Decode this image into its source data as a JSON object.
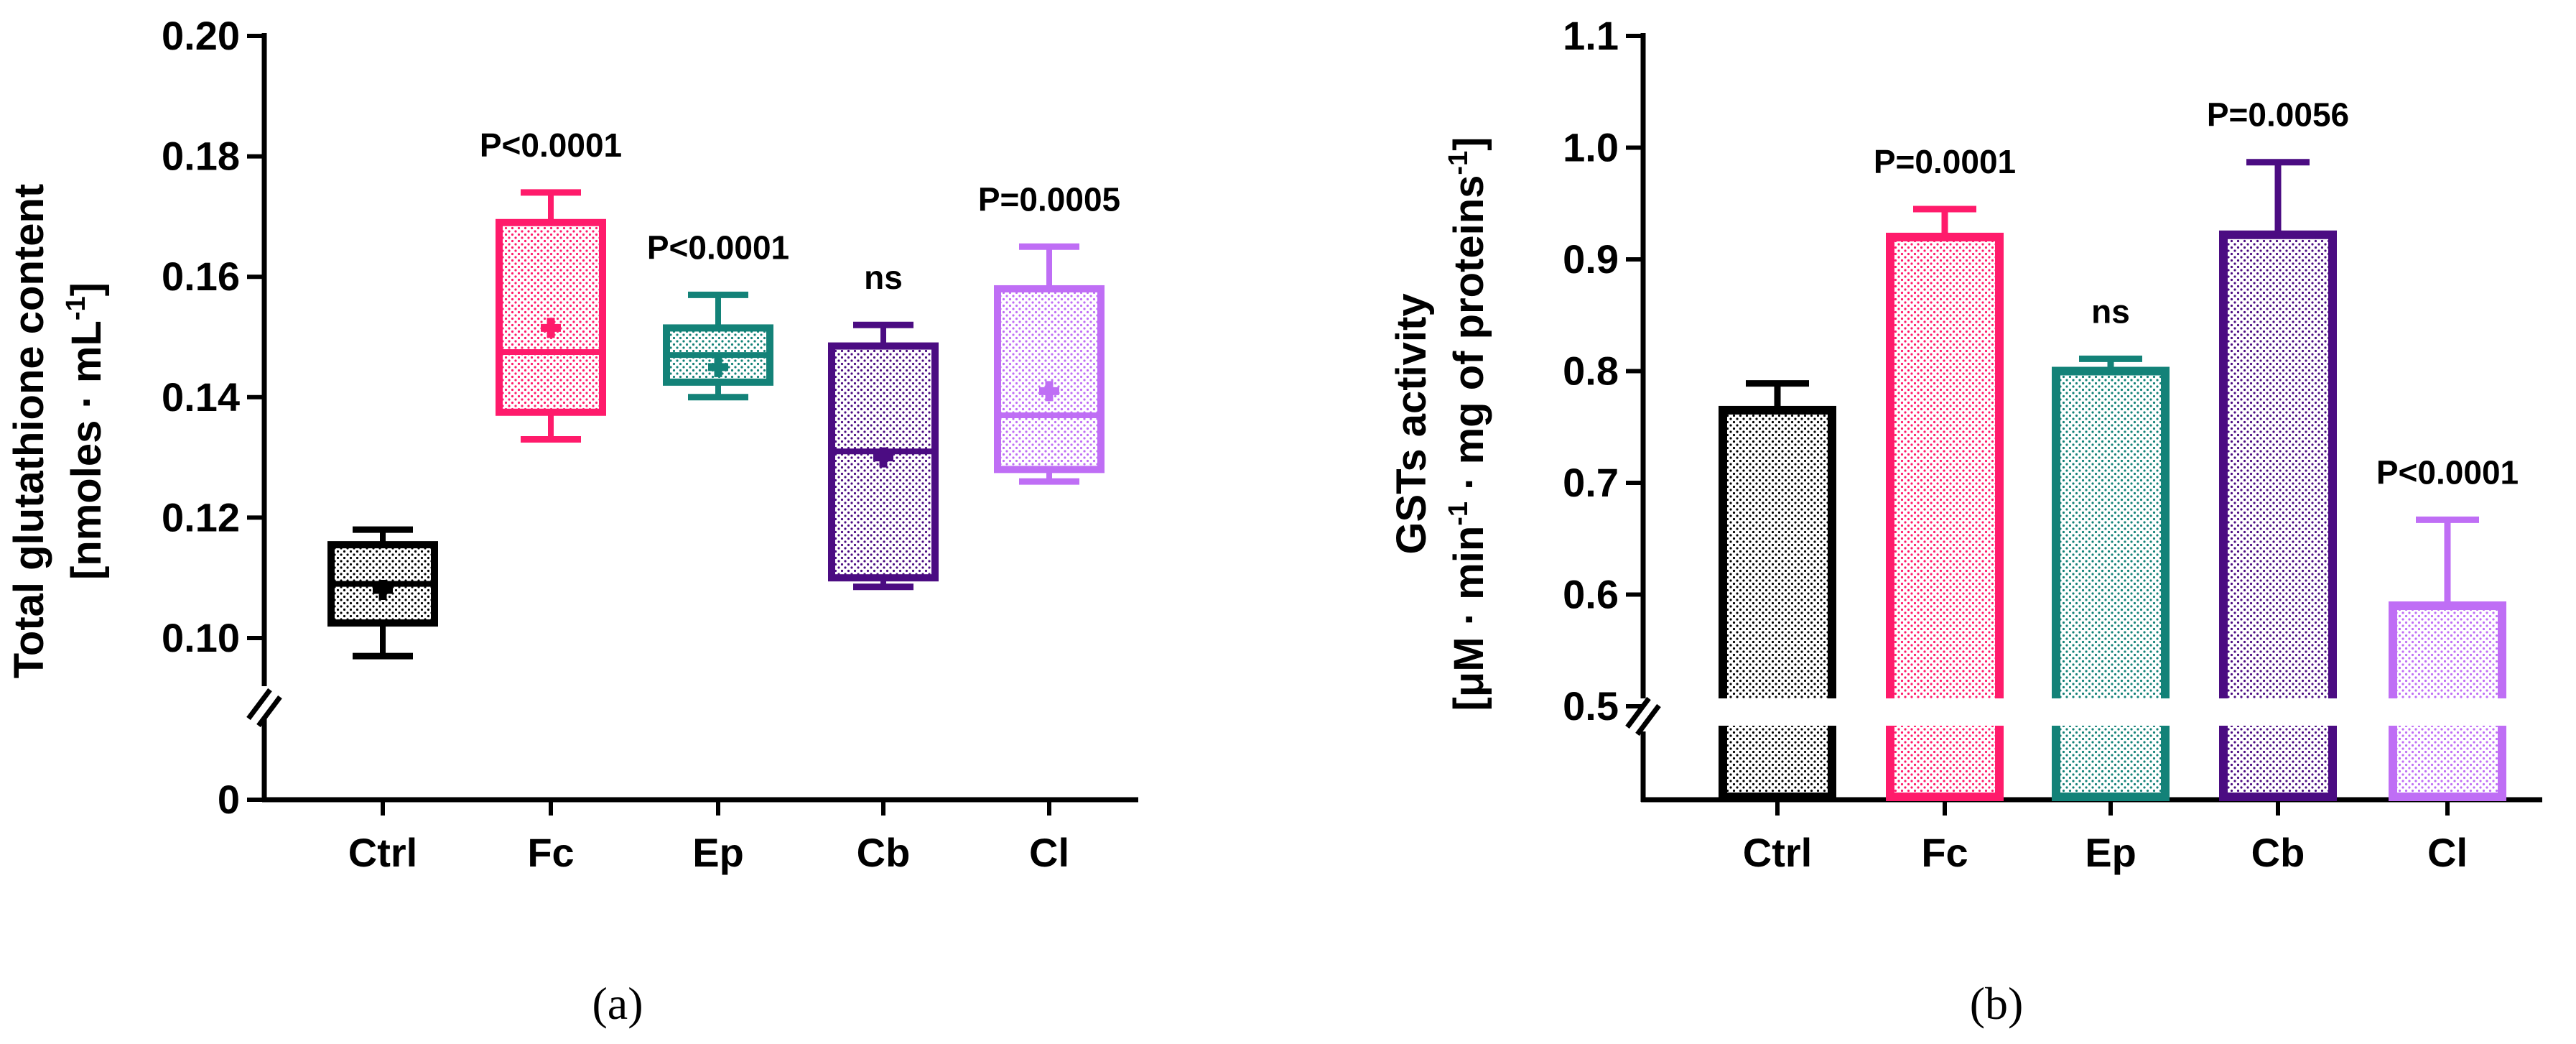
{
  "chart_data": [
    {
      "type": "box",
      "panel_label": "(a)",
      "ylabel_line1": "Total glutathione content",
      "ylabel_line2": "[nmoles · mL",
      "ylabel_sup": "-1",
      "ylabel_close": "]",
      "xlabel": "",
      "categories": [
        "Ctrl",
        "Fc",
        "Ep",
        "Cb",
        "Cl"
      ],
      "y_ticks": [
        "0.20",
        "0.18",
        "0.16",
        "0.14",
        "0.12",
        "0.10",
        "0"
      ],
      "ylim": [
        0.1,
        0.2
      ],
      "axis_break": true,
      "series": [
        {
          "category": "Ctrl",
          "min": 0.097,
          "q1": 0.1025,
          "median": 0.109,
          "q3": 0.1155,
          "max": 0.118,
          "mean": 0.108,
          "color": "#000000",
          "annotation": ""
        },
        {
          "category": "Fc",
          "min": 0.133,
          "q1": 0.1375,
          "median": 0.1475,
          "q3": 0.169,
          "max": 0.174,
          "mean": 0.1515,
          "color": "#ff1b6b",
          "annotation": "P<0.0001"
        },
        {
          "category": "Ep",
          "min": 0.14,
          "q1": 0.1425,
          "median": 0.147,
          "q3": 0.1515,
          "max": 0.157,
          "mean": 0.145,
          "color": "#138278",
          "annotation": "P<0.0001"
        },
        {
          "category": "Cb",
          "min": 0.1085,
          "q1": 0.11,
          "median": 0.131,
          "q3": 0.1485,
          "max": 0.152,
          "mean": 0.13,
          "color": "#4b0c82",
          "annotation": "ns"
        },
        {
          "category": "Cl",
          "min": 0.126,
          "q1": 0.128,
          "median": 0.137,
          "q3": 0.158,
          "max": 0.165,
          "mean": 0.141,
          "color": "#bf6ef5",
          "annotation": "P=0.0005"
        }
      ]
    },
    {
      "type": "bar",
      "panel_label": "(b)",
      "ylabel_line1": "GSTs activity",
      "ylabel_line2_parts": [
        "[μM · min",
        "-1",
        " · mg of proteins",
        "-1",
        "]"
      ],
      "xlabel": "",
      "categories": [
        "Ctrl",
        "Fc",
        "Ep",
        "Cb",
        "Cl"
      ],
      "y_ticks": [
        "1.1",
        "1.0",
        "0.9",
        "0.8",
        "0.7",
        "0.6",
        "0.5"
      ],
      "ylim": [
        0.5,
        1.1
      ],
      "axis_break": true,
      "series": [
        {
          "category": "Ctrl",
          "value": 0.765,
          "error": 0.024,
          "color": "#000000",
          "annotation": ""
        },
        {
          "category": "Fc",
          "value": 0.92,
          "error": 0.025,
          "color": "#ff1b6b",
          "annotation": "P=0.0001"
        },
        {
          "category": "Ep",
          "value": 0.8,
          "error": 0.011,
          "color": "#138278",
          "annotation": "ns"
        },
        {
          "category": "Cb",
          "value": 0.922,
          "error": 0.065,
          "color": "#4b0c82",
          "annotation": "P=0.0056"
        },
        {
          "category": "Cl",
          "value": 0.59,
          "error": 0.077,
          "color": "#bf6ef5",
          "annotation": "P<0.0001"
        }
      ]
    }
  ]
}
